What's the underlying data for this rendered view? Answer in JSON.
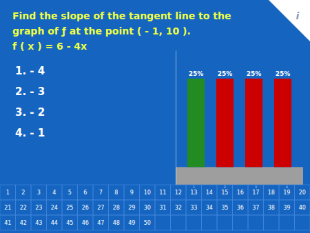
{
  "chart_data": {
    "type": "bar",
    "title": [
      "Find the slope of the tangent line to the",
      "graph of ƒ at the point ( - 1, 10 ).",
      "f ( x ) = 6 - 4x"
    ],
    "annotations": [
      "1.  - 4",
      "2.  - 3",
      "3.  - 2",
      "4.  - 1",
      "i",
      "1",
      "2",
      "3",
      "4",
      "5",
      "6",
      "7",
      "8",
      "9",
      "10",
      "11",
      "12",
      "13",
      "14",
      "15",
      "16",
      "17",
      "18",
      "19",
      "20",
      "21",
      "22",
      "23",
      "24",
      "25",
      "26",
      "27",
      "28",
      "29",
      "30",
      "31",
      "32",
      "33",
      "34",
      "35",
      "36",
      "37",
      "38",
      "39",
      "40",
      "41",
      "42",
      "43",
      "44",
      "45",
      "46",
      "47",
      "48",
      "49",
      "50",
      "1",
      "2",
      "3",
      "4"
    ],
    "categories": [
      null,
      null,
      null,
      null
    ],
    "values": [
      25,
      25,
      25,
      25
    ],
    "value_labels": [
      "25%",
      "25%",
      "25%",
      "25%"
    ],
    "colors": [
      "#228B22",
      "#CC0000",
      "#CC0000",
      "#CC0000"
    ],
    "ylim": [
      -5,
      33
    ],
    "data_labels": true,
    "tick_labels": false,
    "grid": false
  }
}
